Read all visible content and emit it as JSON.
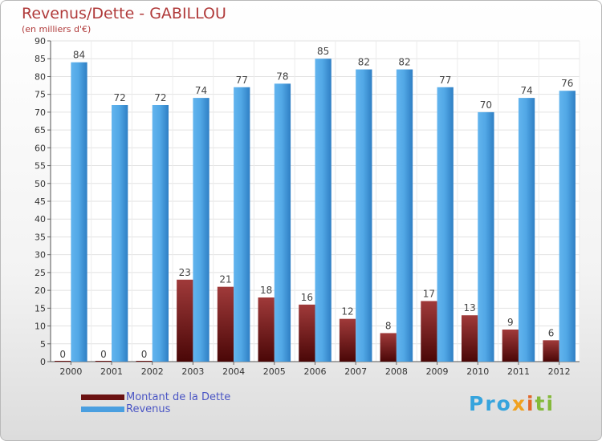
{
  "header": {
    "title": "Revenus/Dette - GABILLOU",
    "subtitle": "(en milliers d'€)"
  },
  "chart_data": {
    "type": "bar",
    "title": "Revenus/Dette - GABILLOU",
    "subtitle": "(en milliers d'€)",
    "xlabel": "",
    "ylabel": "",
    "categories": [
      "2000",
      "2001",
      "2002",
      "2003",
      "2004",
      "2005",
      "2006",
      "2007",
      "2008",
      "2009",
      "2010",
      "2011",
      "2012"
    ],
    "series": [
      {
        "name": "Montant de la Dette",
        "color": "#6b1212",
        "values": [
          0,
          0,
          0,
          23,
          21,
          18,
          16,
          12,
          8,
          17,
          13,
          9,
          6
        ]
      },
      {
        "name": "Revenus",
        "color": "#4a9fe0",
        "values": [
          84,
          72,
          72,
          74,
          77,
          78,
          85,
          82,
          82,
          77,
          70,
          74,
          76
        ]
      }
    ],
    "ylim": [
      0,
      90
    ],
    "yticks": [
      0,
      5,
      10,
      15,
      20,
      25,
      30,
      35,
      40,
      45,
      50,
      55,
      60,
      65,
      70,
      75,
      80,
      85,
      90
    ],
    "grid": true,
    "legend": "bottom-left"
  },
  "legend": {
    "items": [
      {
        "label": "Montant de la Dette",
        "color": "#6b1212"
      },
      {
        "label": "Revenus",
        "color": "#4a9fe0"
      }
    ]
  },
  "logo": {
    "text": "Proxiti"
  }
}
